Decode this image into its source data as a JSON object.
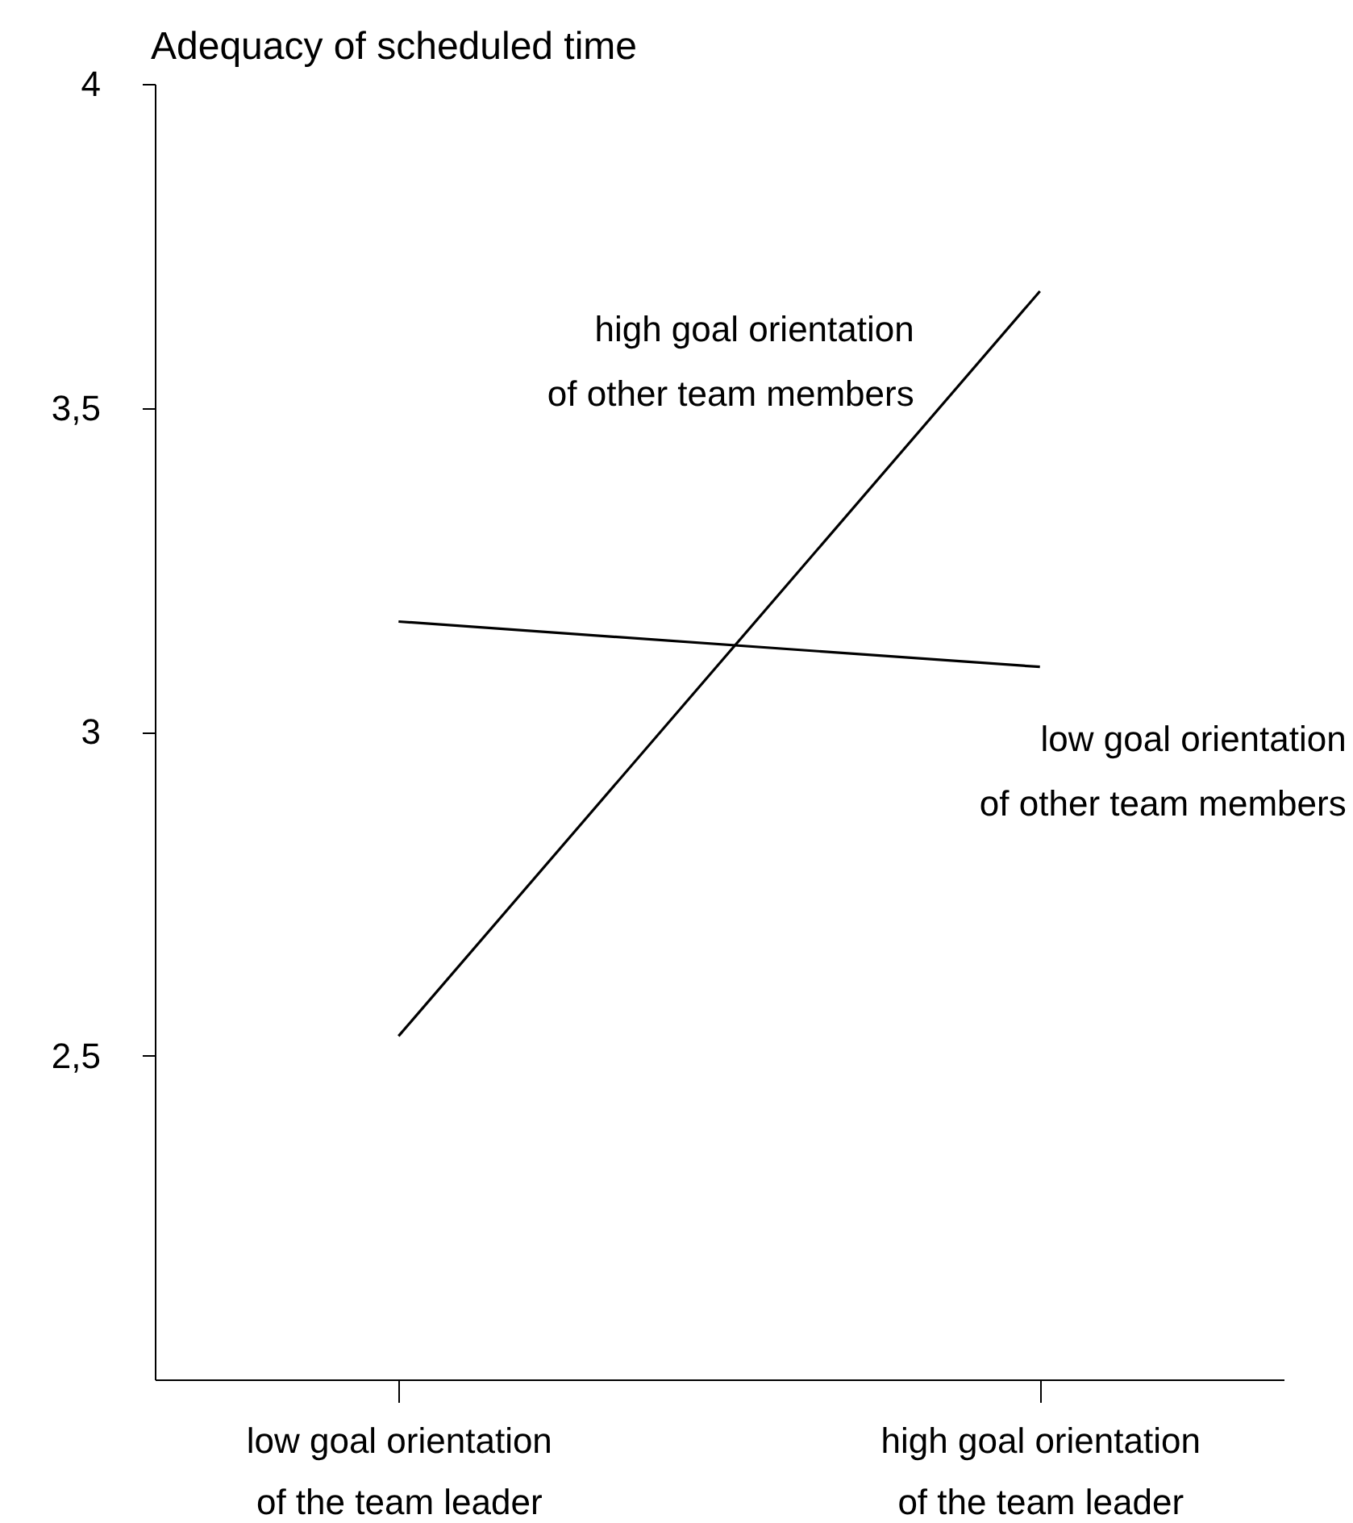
{
  "chart_data": {
    "type": "line",
    "ylabel": "Adequacy of scheduled time",
    "categories": [
      "low goal orientation of the team leader",
      "high goal orientation of the team leader"
    ],
    "series": [
      {
        "name": "high goal orientation of other team members",
        "color": "#000000",
        "values": [
          2.53,
          3.68
        ]
      },
      {
        "name": "low goal orientation of other team members",
        "color": "#000000",
        "values": [
          3.17,
          3.1
        ]
      }
    ],
    "ylim": [
      2,
      4
    ],
    "yticks": [
      {
        "value": 2.5,
        "label": "2,5"
      },
      3,
      {
        "value": 3.5,
        "label": "3,5"
      },
      4
    ],
    "grid": false,
    "legend": false,
    "marker": "none",
    "line_style": "solid"
  }
}
